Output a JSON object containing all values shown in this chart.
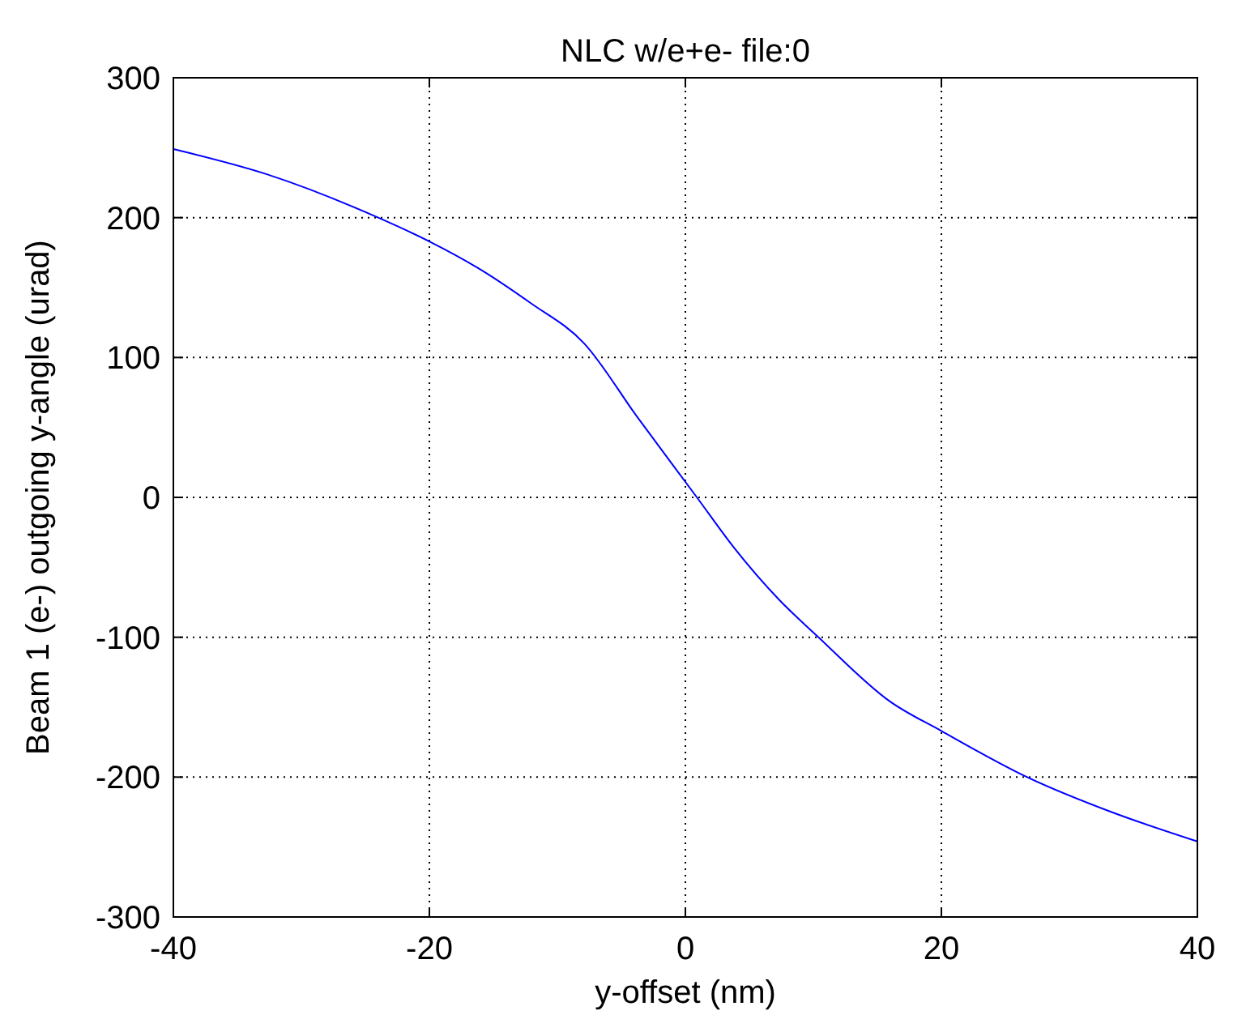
{
  "chart_data": {
    "type": "line",
    "title": "NLC w/e+e- file:0",
    "xlabel": "y-offset (nm)",
    "ylabel": "Beam 1 (e-) outgoing y-angle (urad)",
    "series": [
      {
        "color": "#0000ff",
        "x": [
          -40,
          -32.7,
          -24,
          -20,
          -16.2,
          -12.1,
          -7.9,
          -3.8,
          0.9,
          3.8,
          7.3,
          10.4,
          16,
          20,
          26.7,
          33.3,
          40
        ],
        "values": [
          249,
          231,
          200,
          183,
          164,
          139,
          110,
          58,
          0,
          -36,
          -73,
          -100,
          -146,
          -167,
          -200,
          -225,
          -246
        ]
      }
    ],
    "xlim": [
      -40,
      40
    ],
    "xticks": [
      -40,
      -20,
      0,
      20,
      40
    ],
    "ylim": [
      -300,
      300
    ],
    "yticks": [
      -300,
      -200,
      -100,
      0,
      100,
      200,
      300
    ],
    "grid": true,
    "marker": "none",
    "line_style": "solid"
  }
}
